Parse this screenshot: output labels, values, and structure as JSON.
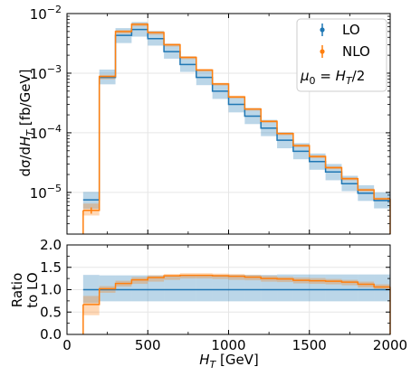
{
  "chart_data": [
    {
      "panel": "main",
      "type": "line",
      "ylabel": "dσ/dH_T [fb/GeV]",
      "yscale": "log",
      "ylim": [
        2e-06,
        0.01
      ],
      "xlim": [
        0,
        2000
      ],
      "grid": true,
      "ytick_labels": [
        {
          "value": 1e-05,
          "mant": "10",
          "exp": "−5"
        },
        {
          "value": 0.0001,
          "mant": "10",
          "exp": "−4"
        },
        {
          "value": 0.001,
          "mant": "10",
          "exp": "−3"
        },
        {
          "value": 0.01,
          "mant": "10",
          "exp": "−2"
        }
      ],
      "legend": {
        "placement": "top-right",
        "entries": [
          "LO",
          "NLO"
        ],
        "annotation": "μ0 = H_T/2"
      },
      "bin_edges": [
        100,
        200,
        300,
        400,
        500,
        600,
        700,
        800,
        900,
        1000,
        1100,
        1200,
        1300,
        1400,
        1500,
        1600,
        1700,
        1800,
        1900,
        2000
      ],
      "series": [
        {
          "name": "LO",
          "color": "#1f77b4",
          "values": [
            7.5e-06,
            0.00085,
            0.0043,
            0.0054,
            0.0038,
            0.0023,
            0.0014,
            0.00085,
            0.0005,
            0.0003,
            0.00019,
            0.00012,
            7.5e-05,
            4.9e-05,
            3.3e-05,
            2.2e-05,
            1.4e-05,
            9.7e-06,
            7.3e-06
          ],
          "band_lower": [
            5.3e-06,
            0.00065,
            0.0032,
            0.0041,
            0.0029,
            0.00175,
            0.00105,
            0.00063,
            0.00037,
            0.00022,
            0.00014,
            8.8e-05,
            5.5e-05,
            3.6e-05,
            2.4e-05,
            1.6e-05,
            1.05e-05,
            7.2e-06,
            5.4e-06
          ],
          "band_upper": [
            1.02e-05,
            0.00115,
            0.0057,
            0.0072,
            0.0051,
            0.0031,
            0.0019,
            0.00115,
            0.00068,
            0.00041,
            0.00026,
            0.000165,
            0.000102,
            6.7e-05,
            4.5e-05,
            3e-05,
            1.9e-05,
            1.32e-05,
            1e-05
          ]
        },
        {
          "name": "NLO",
          "color": "#ff7f0e",
          "values": [
            5e-06,
            0.00088,
            0.005,
            0.0066,
            0.0048,
            0.003,
            0.00184,
            0.00113,
            0.00066,
            0.0004,
            0.00025,
            0.000156,
            9.7e-05,
            6.1e-05,
            4e-05,
            2.6e-05,
            1.7e-05,
            1.1e-05,
            7.8e-06
          ],
          "band_lower": [
            4.1e-06,
            0.00079,
            0.0046,
            0.0061,
            0.0044,
            0.0028,
            0.00172,
            0.00106,
            0.00062,
            0.000375,
            0.000235,
            0.000147,
            9.1e-05,
            5.7e-05,
            3.75e-05,
            2.45e-05,
            1.6e-05,
            1.04e-05,
            7.3e-06
          ],
          "band_upper": [
            6.5e-06,
            0.00094,
            0.0053,
            0.00695,
            0.00505,
            0.00315,
            0.00193,
            0.00118,
            0.00069,
            0.00042,
            0.00026,
            0.000162,
            0.000101,
            6.4e-05,
            4.2e-05,
            2.75e-05,
            1.8e-05,
            1.16e-05,
            8.2e-06
          ]
        }
      ],
      "points": [
        {
          "series": "NLO",
          "x": 150,
          "y": 5e-06,
          "yerr_low": 4.4e-06,
          "yerr_high": 5.6e-06,
          "xerr": 20
        }
      ],
      "legend_markers": [
        {
          "series": "LO",
          "color": "#1f77b4"
        },
        {
          "series": "NLO",
          "color": "#ff7f0e"
        }
      ]
    },
    {
      "panel": "ratio",
      "type": "line",
      "xlabel": "H_T [GeV]",
      "ylabel_lines": [
        "Ratio",
        "to LO"
      ],
      "ylim": [
        0.0,
        2.0
      ],
      "xlim": [
        0,
        2000
      ],
      "grid": true,
      "ytick_labels": [
        "0.0",
        "0.5",
        "1.0",
        "1.5",
        "2.0"
      ],
      "xtick_labels": [
        "0",
        "500",
        "1000",
        "1500",
        "2000"
      ],
      "bin_edges": [
        100,
        200,
        300,
        400,
        500,
        600,
        700,
        800,
        900,
        1000,
        1100,
        1200,
        1300,
        1400,
        1500,
        1600,
        1700,
        1800,
        1900,
        2000
      ],
      "series": [
        {
          "name": "LO",
          "color": "#1f77b4",
          "values": [
            1.0,
            1.0,
            1.0,
            1.0,
            1.0,
            1.0,
            1.0,
            1.0,
            1.0,
            1.0,
            1.0,
            1.0,
            1.0,
            1.0,
            1.0,
            1.0,
            1.0,
            1.0,
            1.0
          ],
          "band_lower": [
            0.7,
            0.74,
            0.74,
            0.74,
            0.74,
            0.74,
            0.74,
            0.74,
            0.74,
            0.74,
            0.74,
            0.74,
            0.74,
            0.74,
            0.74,
            0.74,
            0.74,
            0.74,
            0.74
          ],
          "band_upper": [
            1.33,
            1.32,
            1.32,
            1.32,
            1.32,
            1.32,
            1.33,
            1.33,
            1.33,
            1.33,
            1.33,
            1.33,
            1.34,
            1.34,
            1.34,
            1.34,
            1.34,
            1.34,
            1.34
          ]
        },
        {
          "name": "NLO",
          "color": "#ff7f0e",
          "values": [
            0.67,
            1.02,
            1.14,
            1.22,
            1.27,
            1.31,
            1.32,
            1.32,
            1.31,
            1.3,
            1.28,
            1.25,
            1.24,
            1.21,
            1.2,
            1.19,
            1.17,
            1.12,
            1.06
          ],
          "band_lower": [
            0.43,
            0.93,
            1.07,
            1.13,
            1.18,
            1.22,
            1.25,
            1.25,
            1.24,
            1.22,
            1.21,
            1.18,
            1.17,
            1.14,
            1.13,
            1.12,
            1.1,
            1.05,
            1.0
          ],
          "band_upper": [
            0.86,
            1.08,
            1.2,
            1.28,
            1.32,
            1.35,
            1.37,
            1.37,
            1.36,
            1.35,
            1.33,
            1.31,
            1.29,
            1.27,
            1.26,
            1.24,
            1.22,
            1.18,
            1.12
          ]
        }
      ]
    }
  ]
}
